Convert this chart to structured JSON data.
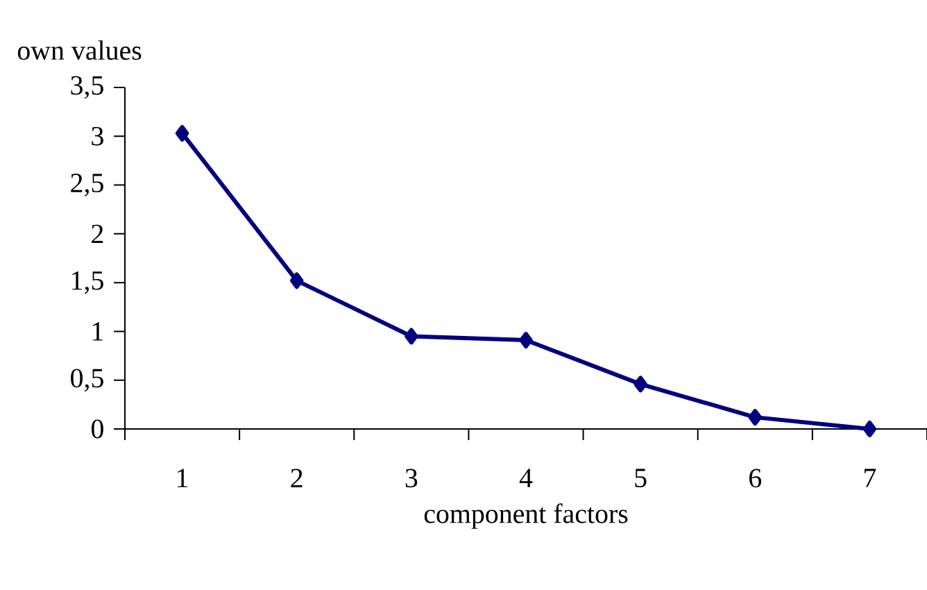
{
  "chart_data": {
    "type": "line",
    "xlabel": "component factors",
    "ylabel": "own values",
    "categories": [
      "1",
      "2",
      "3",
      "4",
      "5",
      "6",
      "7"
    ],
    "series": [
      {
        "color": "#000080",
        "values": [
          3.03,
          1.52,
          0.95,
          0.91,
          0.46,
          0.12,
          0.0
        ]
      }
    ],
    "ylim": [
      0,
      3.5
    ],
    "yticks": [
      0,
      {
        "value": 0.5,
        "label": "0,5"
      },
      1,
      {
        "value": 1.5,
        "label": "1,5"
      },
      2,
      {
        "value": 2.5,
        "label": "2,5"
      },
      3,
      {
        "value": 3.5,
        "label": "3,5"
      }
    ],
    "marker": "diamond",
    "line_style": "solid",
    "grid": false
  }
}
